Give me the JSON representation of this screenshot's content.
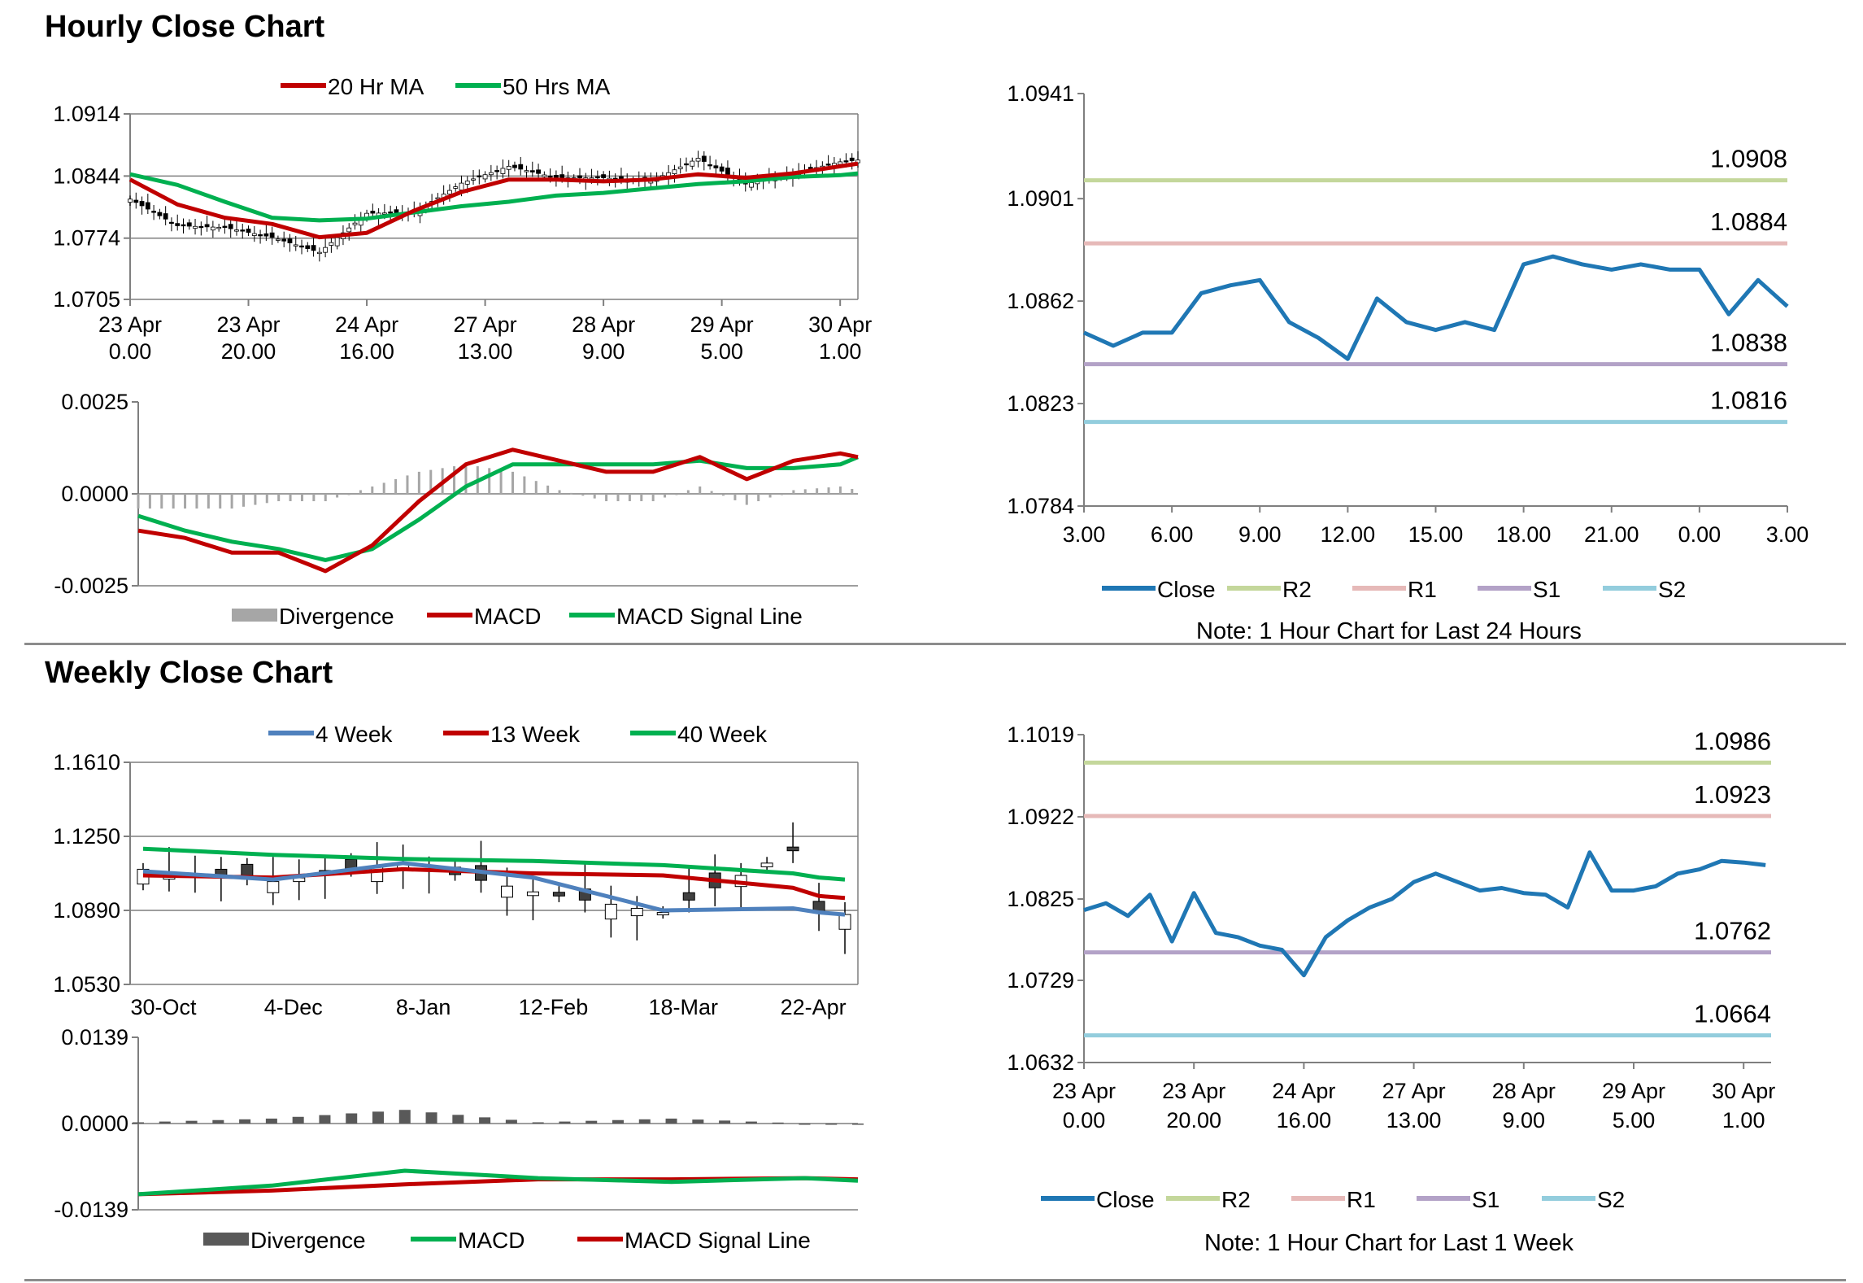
{
  "hourly_title": "Hourly Close Chart",
  "weekly_title": "Weekly Close Chart",
  "colors": {
    "red": "#c00000",
    "green": "#00b050",
    "blue": "#1f77b4",
    "steel": "#4f81bd",
    "R2": "#c4d79b",
    "R1": "#e6b9b8",
    "S1": "#b3a2c7",
    "S2": "#93cddd",
    "grid": "#7f7f7f",
    "div_light": "#a6a6a6",
    "div_dark": "#595959"
  },
  "chart_data": [
    {
      "id": "hourly_price",
      "type": "line",
      "chart_style": "candlestick with moving averages",
      "legend": [
        "20 Hr MA",
        "50 Hrs MA"
      ],
      "yticks": [
        "1.0914",
        "1.0844",
        "1.0774",
        "1.0705"
      ],
      "ylim": [
        1.0705,
        1.0914
      ],
      "xticks": [
        [
          "23 Apr",
          "0.00"
        ],
        [
          "23 Apr",
          "20.00"
        ],
        [
          "24 Apr",
          "16.00"
        ],
        [
          "27 Apr",
          "13.00"
        ],
        [
          "28 Apr",
          "9.00"
        ],
        [
          "29 Apr",
          "5.00"
        ],
        [
          "30 Apr",
          "1.00"
        ]
      ],
      "x": [
        0,
        8,
        16,
        24,
        32,
        40,
        48,
        56,
        64,
        72,
        80,
        88,
        96,
        104,
        112,
        120,
        123
      ],
      "close": [
        1.0818,
        1.0788,
        1.0786,
        1.0775,
        1.0758,
        1.0802,
        1.0803,
        1.0836,
        1.0855,
        1.0842,
        1.0842,
        1.0838,
        1.0864,
        1.0835,
        1.0847,
        1.086,
        1.0862
      ],
      "series": [
        {
          "name": "20 Hr MA",
          "values": [
            1.084,
            1.0812,
            1.0797,
            1.079,
            1.0775,
            1.078,
            1.0805,
            1.0826,
            1.084,
            1.084,
            1.0838,
            1.084,
            1.0846,
            1.0842,
            1.0847,
            1.0855,
            1.0858
          ]
        },
        {
          "name": "50 Hrs MA",
          "values": [
            1.0846,
            1.0834,
            1.0815,
            1.0797,
            1.0794,
            1.0796,
            1.0803,
            1.081,
            1.0815,
            1.0822,
            1.0825,
            1.083,
            1.0835,
            1.0838,
            1.0843,
            1.0845,
            1.0847
          ]
        }
      ]
    },
    {
      "id": "hourly_macd",
      "type": "line",
      "legend": [
        "Divergence",
        "MACD",
        "MACD Signal Line"
      ],
      "yticks": [
        "0.0025",
        "0.0000",
        "-0.0025"
      ],
      "ylim": [
        -0.0025,
        0.0025
      ],
      "x": [
        0,
        8,
        16,
        24,
        32,
        40,
        48,
        56,
        64,
        72,
        80,
        88,
        96,
        104,
        112,
        120,
        123
      ],
      "series": [
        {
          "name": "MACD",
          "values": [
            -0.001,
            -0.0012,
            -0.0016,
            -0.0016,
            -0.0021,
            -0.0014,
            -0.0002,
            0.0008,
            0.0012,
            0.0009,
            0.0006,
            0.0006,
            0.001,
            0.0004,
            0.0009,
            0.0011,
            0.001
          ]
        },
        {
          "name": "MACD Signal Line",
          "values": [
            -0.0006,
            -0.001,
            -0.0013,
            -0.0015,
            -0.0018,
            -0.0015,
            -0.0007,
            0.0002,
            0.0008,
            0.0008,
            0.0008,
            0.0008,
            0.0009,
            0.0007,
            0.0007,
            0.0008,
            0.001
          ]
        },
        {
          "name": "Divergence",
          "values": [
            -0.0004,
            -0.0004,
            -0.0004,
            -0.0002,
            -0.0002,
            0.0002,
            0.0006,
            0.0008,
            0.0006,
            0.0001,
            -0.0002,
            -0.0002,
            0.0002,
            -0.0003,
            0.0001,
            0.0002,
            0.0001
          ]
        }
      ]
    },
    {
      "id": "hourly_24h",
      "type": "line",
      "yticks": [
        "1.0941",
        "1.0901",
        "1.0862",
        "1.0823",
        "1.0784"
      ],
      "ylim": [
        1.0784,
        1.0941
      ],
      "xticks": [
        "3.00",
        "6.00",
        "9.00",
        "12.00",
        "15.00",
        "18.00",
        "21.00",
        "0.00",
        "3.00"
      ],
      "x": [
        0,
        1,
        2,
        3,
        4,
        5,
        6,
        7,
        8,
        9,
        10,
        11,
        12,
        13,
        14,
        15,
        16,
        17,
        18,
        19,
        20,
        21,
        22,
        23,
        24
      ],
      "series": [
        {
          "name": "Close",
          "values": [
            1.085,
            1.0845,
            1.085,
            1.085,
            1.0865,
            1.0868,
            1.087,
            1.0854,
            1.0848,
            1.084,
            1.0863,
            1.0854,
            1.0851,
            1.0854,
            1.0851,
            1.0876,
            1.0879,
            1.0876,
            1.0874,
            1.0876,
            1.0874,
            1.0874,
            1.0857,
            1.087,
            1.086
          ]
        }
      ],
      "levels": [
        {
          "name": "R2",
          "value": 1.0908,
          "label": "1.0908"
        },
        {
          "name": "R1",
          "value": 1.0884,
          "label": "1.0884"
        },
        {
          "name": "S1",
          "value": 1.0838,
          "label": "1.0838"
        },
        {
          "name": "S2",
          "value": 1.0816,
          "label": "1.0816"
        }
      ],
      "legend": [
        "Close",
        "R2",
        "R1",
        "S1",
        "S2"
      ],
      "note": "Note:  1 Hour Chart for Last 24 Hours"
    },
    {
      "id": "weekly_price",
      "type": "line",
      "chart_style": "weekly candlestick with moving averages",
      "legend": [
        "4 Week",
        "13 Week",
        "40 Week"
      ],
      "yticks": [
        "1.1610",
        "1.1250",
        "1.0890",
        "1.0530"
      ],
      "ylim": [
        1.053,
        1.161
      ],
      "xticks": [
        "30-Oct",
        "4-Dec",
        "8-Jan",
        "12-Feb",
        "18-Mar",
        "22-Apr"
      ],
      "x": [
        0,
        5,
        10,
        15,
        20,
        25,
        26,
        27
      ],
      "close": [
        1.109,
        1.103,
        1.112,
        1.098,
        1.088,
        1.118,
        1.088,
        1.087
      ],
      "series": [
        {
          "name": "4 Week",
          "values": [
            1.108,
            1.104,
            1.112,
            1.105,
            1.089,
            1.09,
            1.088,
            1.087
          ]
        },
        {
          "name": "13 Week",
          "values": [
            1.106,
            1.105,
            1.109,
            1.107,
            1.106,
            1.1,
            1.096,
            1.095
          ]
        },
        {
          "name": "40 Week",
          "values": [
            1.119,
            1.116,
            1.114,
            1.113,
            1.111,
            1.107,
            1.105,
            1.104
          ]
        }
      ]
    },
    {
      "id": "weekly_macd",
      "type": "line",
      "legend": [
        "Divergence",
        "MACD",
        "MACD Signal Line"
      ],
      "yticks": [
        "0.0139",
        "0.0000",
        "-0.0139"
      ],
      "ylim": [
        -0.0139,
        0.0139
      ],
      "x": [
        0,
        5,
        10,
        15,
        20,
        25,
        27
      ],
      "series": [
        {
          "name": "MACD",
          "values": [
            -0.0114,
            -0.01,
            -0.0076,
            -0.0088,
            -0.0094,
            -0.0088,
            -0.0092
          ]
        },
        {
          "name": "MACD Signal Line",
          "values": [
            -0.0114,
            -0.0108,
            -0.0098,
            -0.009,
            -0.009,
            -0.0088,
            -0.009
          ]
        },
        {
          "name": "Divergence",
          "values": [
            0.0002,
            0.0008,
            0.0022,
            0.0002,
            0.0008,
            0.0,
            -0.0002
          ]
        }
      ]
    },
    {
      "id": "weekly_1w",
      "type": "line",
      "yticks": [
        "1.1019",
        "1.0922",
        "1.0825",
        "1.0729",
        "1.0632"
      ],
      "ylim": [
        1.0632,
        1.1019
      ],
      "xticks": [
        [
          "23 Apr",
          "0.00"
        ],
        [
          "23 Apr",
          "20.00"
        ],
        [
          "24 Apr",
          "16.00"
        ],
        [
          "27 Apr",
          "13.00"
        ],
        [
          "28 Apr",
          "9.00"
        ],
        [
          "29 Apr",
          "5.00"
        ],
        [
          "30 Apr",
          "1.00"
        ]
      ],
      "x": [
        0,
        4,
        8,
        12,
        16,
        20,
        24,
        28,
        32,
        36,
        40,
        44,
        48,
        52,
        56,
        60,
        64,
        68,
        72,
        76,
        80,
        84,
        88,
        92,
        96,
        100,
        104,
        108,
        112,
        116,
        120,
        124
      ],
      "series": [
        {
          "name": "Close",
          "values": [
            1.0812,
            1.082,
            1.0805,
            1.083,
            1.0775,
            1.0832,
            1.0785,
            1.078,
            1.077,
            1.0765,
            1.0735,
            1.078,
            1.08,
            1.0815,
            1.0825,
            1.0845,
            1.0855,
            1.0845,
            1.0835,
            1.0838,
            1.0832,
            1.083,
            1.0815,
            1.088,
            1.0835,
            1.0835,
            1.084,
            1.0855,
            1.086,
            1.087,
            1.0868,
            1.0865
          ]
        }
      ],
      "levels": [
        {
          "name": "R2",
          "value": 1.0986,
          "label": "1.0986"
        },
        {
          "name": "R1",
          "value": 1.0923,
          "label": "1.0923"
        },
        {
          "name": "S1",
          "value": 1.0762,
          "label": "1.0762"
        },
        {
          "name": "S2",
          "value": 1.0664,
          "label": "1.0664"
        }
      ],
      "legend": [
        "Close",
        "R2",
        "R1",
        "S1",
        "S2"
      ],
      "note": "Note:  1 Hour Chart for Last 1 Week"
    }
  ]
}
